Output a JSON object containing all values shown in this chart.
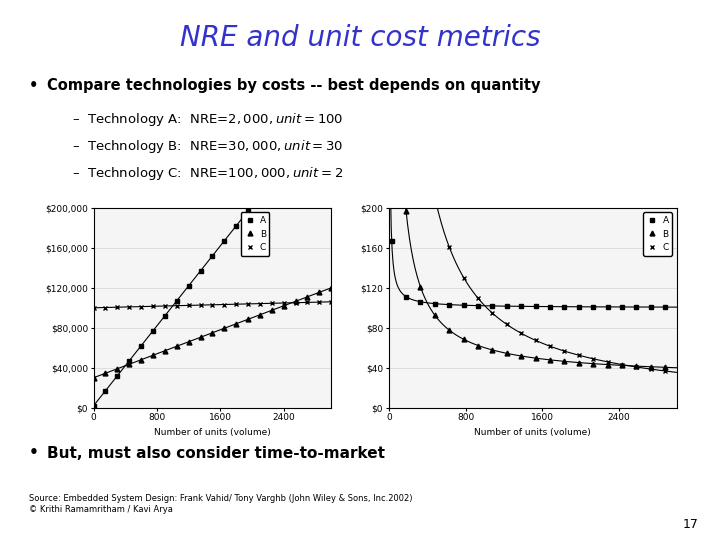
{
  "title": "NRE and unit cost metrics",
  "title_color": "#3333cc",
  "title_fontsize": 20,
  "bullet1": "Compare technologies by costs -- best depends on quantity",
  "sub_items": [
    "Technology A:  NRE=$2,000,   unit=$100",
    "Technology B:  NRE=$30,000,  unit=$30",
    "Technology C:  NRE=$100,000, unit=$2"
  ],
  "bullet2": "But, must also consider time-to-market",
  "source_line1": "Source: Embedded System Design: Frank Vahid/ Tony Varghb (John Wiley & Sons, Inc.2002)",
  "source_line2": "© Krithi Ramamritham / Kavi Arya",
  "page_number": "17",
  "tech_A": {
    "NRE": 2000,
    "unit": 100
  },
  "tech_B": {
    "NRE": 30000,
    "unit": 30
  },
  "tech_C": {
    "NRE": 100000,
    "unit": 2
  },
  "chart1_yticks": [
    "$0",
    "$40,000",
    "$80,000",
    "$120,000",
    "$160,000",
    "$200,000"
  ],
  "chart1_yvals": [
    0,
    40000,
    80000,
    120000,
    160000,
    200000
  ],
  "chart2_yticks": [
    "$0",
    "$40",
    "$80",
    "$120",
    "$160",
    "$200"
  ],
  "chart2_yvals": [
    0,
    40,
    80,
    120,
    160,
    200
  ],
  "xticks": [
    0,
    800,
    1600,
    2400
  ],
  "xmax": 3000,
  "xlabel": "Number of units (volume)",
  "background_color": "#ffffff",
  "chart_bg": "#f5f5f5"
}
